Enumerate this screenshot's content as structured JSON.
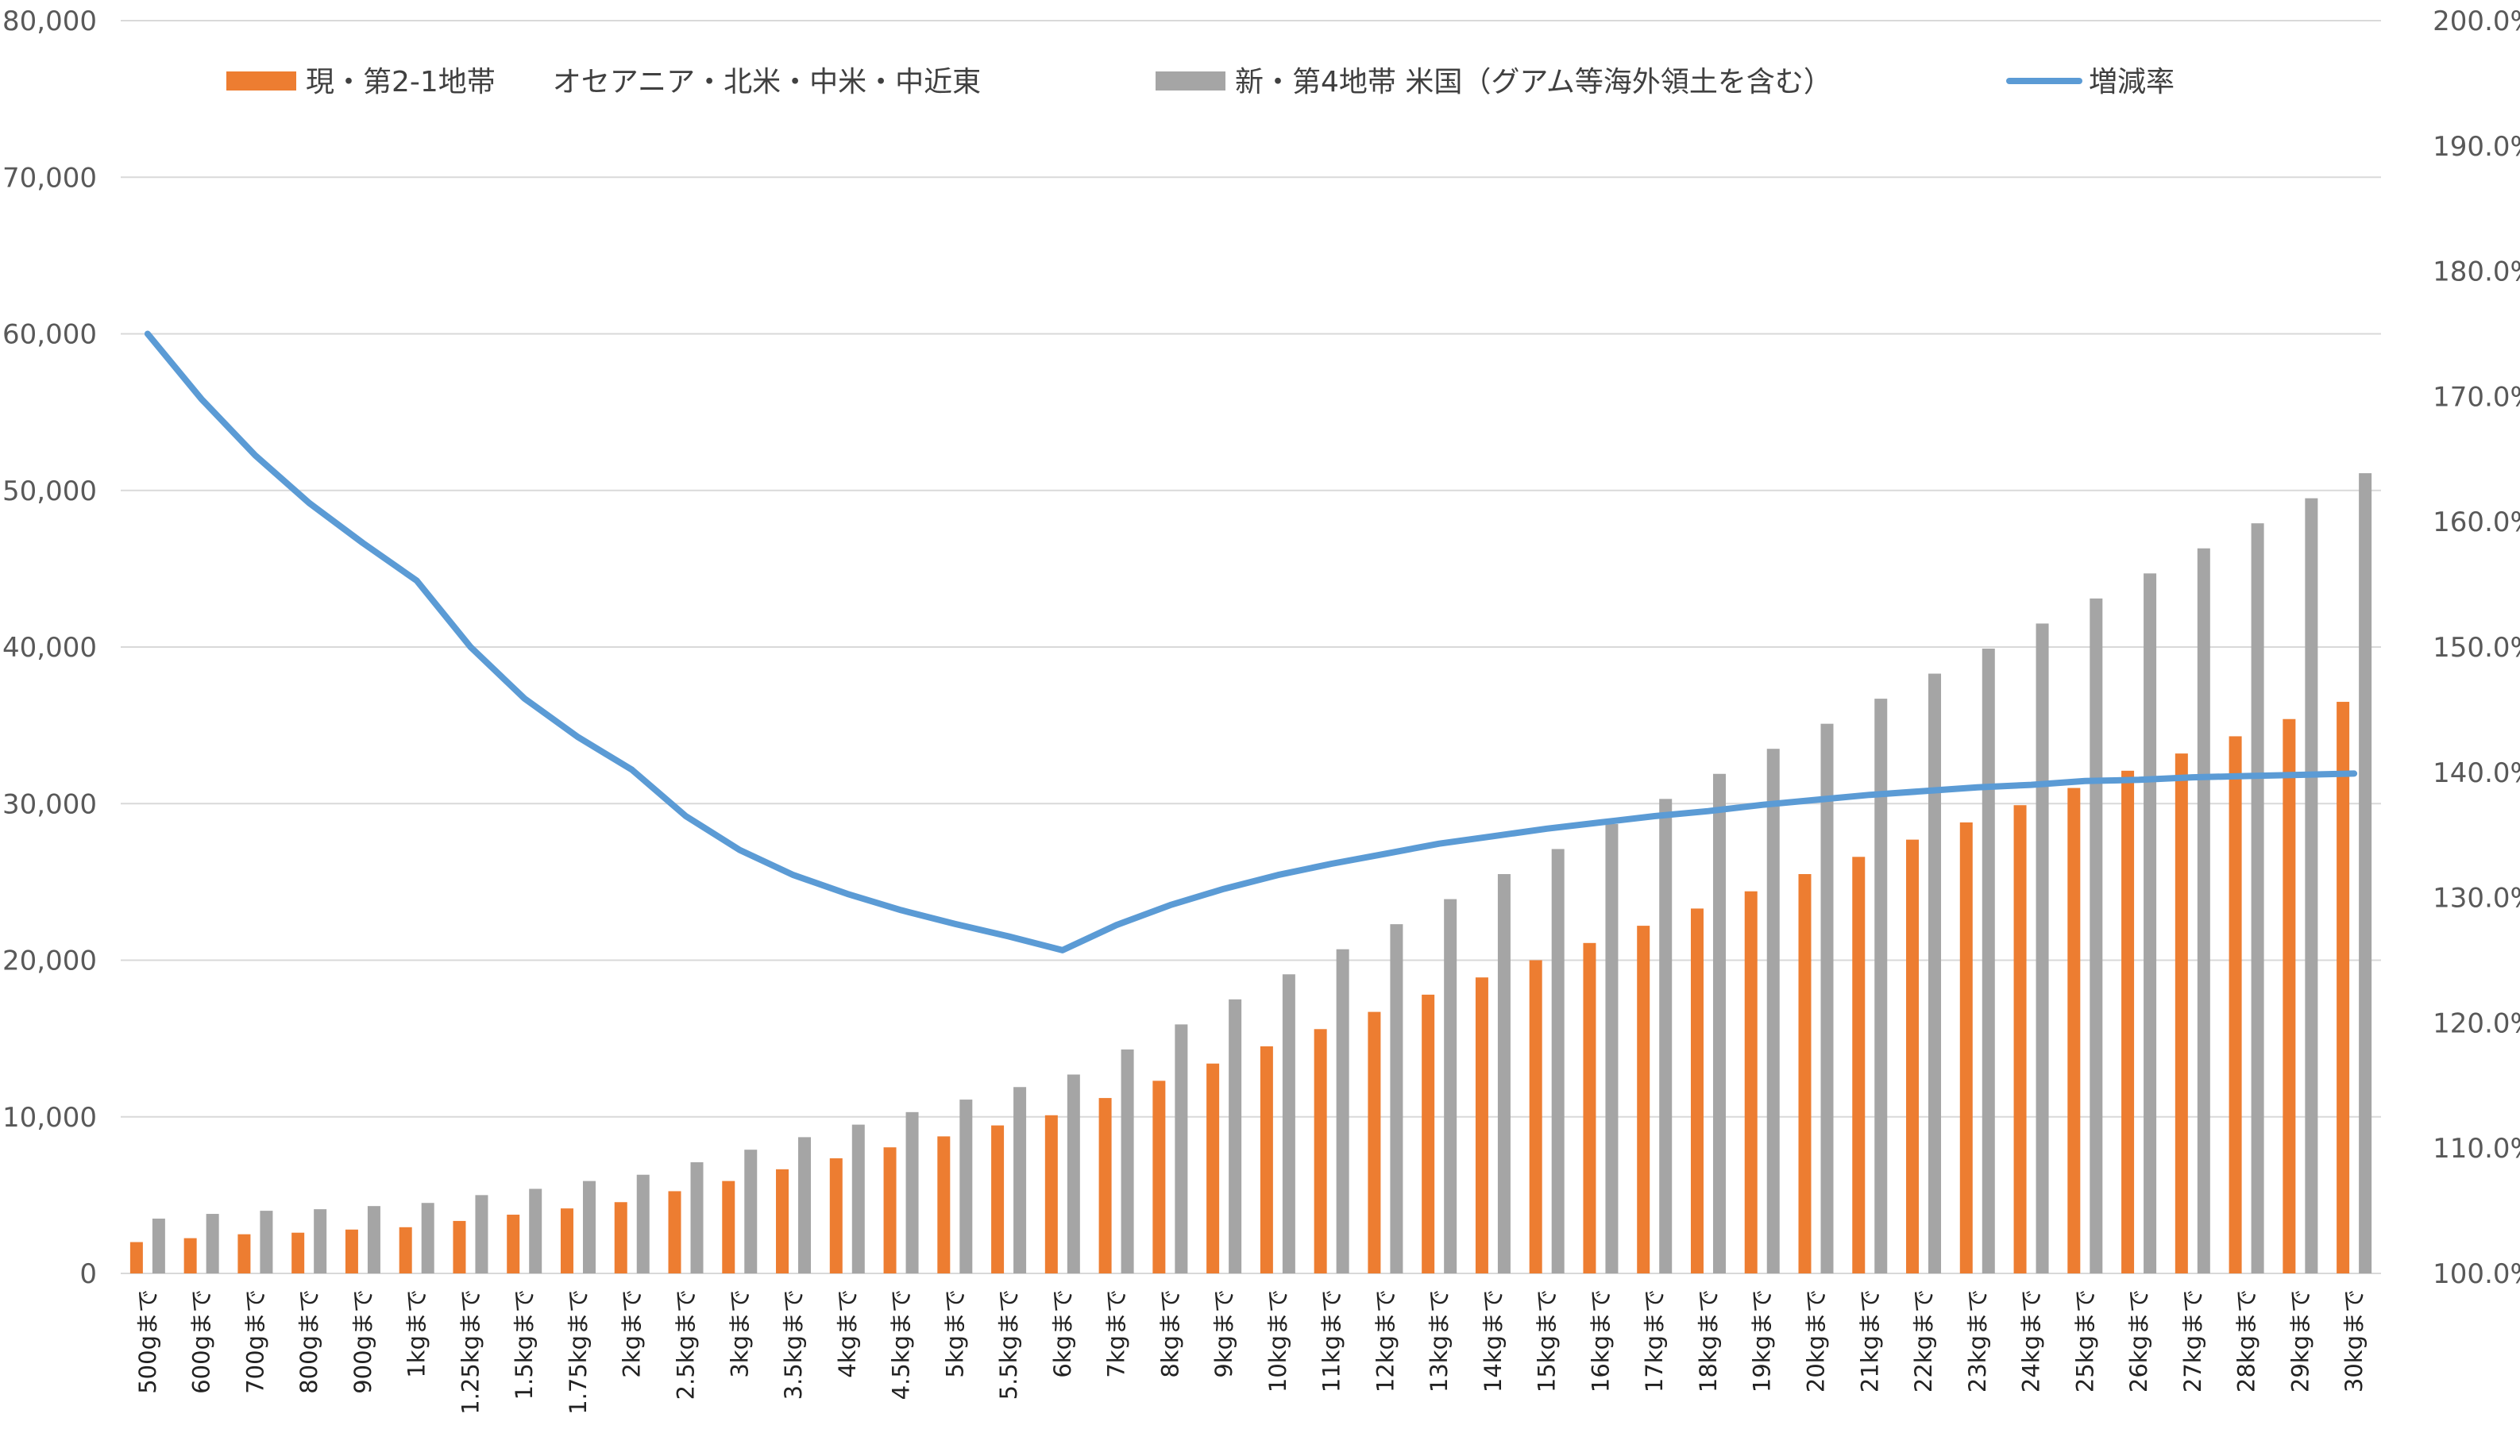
{
  "chart_data": {
    "type": "bar",
    "categories": [
      "500gまで",
      "600gまで",
      "700gまで",
      "800gまで",
      "900gまで",
      "1kgまで",
      "1.25kgまで",
      "1.5kgまで",
      "1.75kgまで",
      "2kgまで",
      "2.5kgまで",
      "3kgまで",
      "3.5kgまで",
      "4kgまで",
      "4.5kgまで",
      "5kgまで",
      "5.5kgまで",
      "6kgまで",
      "7kgまで",
      "8kgまで",
      "9kgまで",
      "10kgまで",
      "11kgまで",
      "12kgまで",
      "13kgまで",
      "14kgまで",
      "15kgまで",
      "16kgまで",
      "17kgまで",
      "18kgまで",
      "19kgまで",
      "20kgまで",
      "21kgまで",
      "22kgまで",
      "23kgまで",
      "24kgまで",
      "25kgまで",
      "26kgまで",
      "27kgまで",
      "28kgまで",
      "29kgまで",
      "30kgまで"
    ],
    "series": [
      {
        "name": "現・第2-1地帯　　オセアニア・北米・中米・中近東",
        "kind": "bar",
        "axis": "left",
        "color": "#ED7D31",
        "values": [
          2000,
          2250,
          2500,
          2600,
          2800,
          2950,
          3350,
          3750,
          4150,
          4550,
          5250,
          5900,
          6650,
          7350,
          8050,
          8750,
          9450,
          10100,
          11200,
          12300,
          13400,
          14500,
          15600,
          16700,
          17800,
          18900,
          20000,
          21100,
          22200,
          23300,
          24400,
          25500,
          26600,
          27700,
          28800,
          29900,
          31000,
          32100,
          33200,
          34300,
          35400,
          36500
        ]
      },
      {
        "name": "新・第4地帯 米国（グアム等海外領土を含む）",
        "kind": "bar",
        "axis": "left",
        "color": "#A5A5A5",
        "values": [
          3500,
          3800,
          4000,
          4100,
          4300,
          4500,
          5000,
          5400,
          5900,
          6300,
          7100,
          7900,
          8700,
          9500,
          10300,
          11100,
          11900,
          12700,
          14300,
          15900,
          17500,
          19100,
          20700,
          22300,
          23900,
          25500,
          27100,
          28700,
          30300,
          31900,
          33500,
          35100,
          36700,
          38300,
          39900,
          41500,
          43100,
          44700,
          46300,
          47900,
          49500,
          51100
        ]
      },
      {
        "name": "増減率",
        "kind": "line",
        "axis": "right",
        "color": "#5B9BD5",
        "values": [
          175.0,
          169.8,
          165.3,
          161.5,
          158.3,
          155.3,
          150.0,
          145.9,
          142.8,
          140.2,
          136.5,
          133.8,
          131.8,
          130.3,
          129.0,
          127.9,
          126.9,
          125.8,
          127.8,
          129.4,
          130.7,
          131.8,
          132.7,
          133.5,
          134.3,
          134.9,
          135.5,
          136.0,
          136.5,
          136.9,
          137.4,
          137.8,
          138.2,
          138.5,
          138.8,
          139.0,
          139.3,
          139.4,
          139.6,
          139.7,
          139.8,
          139.9
        ]
      }
    ],
    "y_left": {
      "min": 0,
      "max": 80000,
      "step": 10000,
      "tick_labels": [
        "0",
        "10,000",
        "20,000",
        "30,000",
        "40,000",
        "50,000",
        "60,000",
        "70,000",
        "80,000"
      ]
    },
    "y_right": {
      "min": 100,
      "max": 200,
      "step": 10,
      "tick_labels": [
        "100.0%",
        "110.0%",
        "120.0%",
        "130.0%",
        "140.0%",
        "150.0%",
        "160.0%",
        "170.0%",
        "180.0%",
        "190.0%",
        "200.0%"
      ]
    },
    "title": "",
    "xlabel": "",
    "ylabel": "",
    "grid": true,
    "legend_position": "top"
  }
}
